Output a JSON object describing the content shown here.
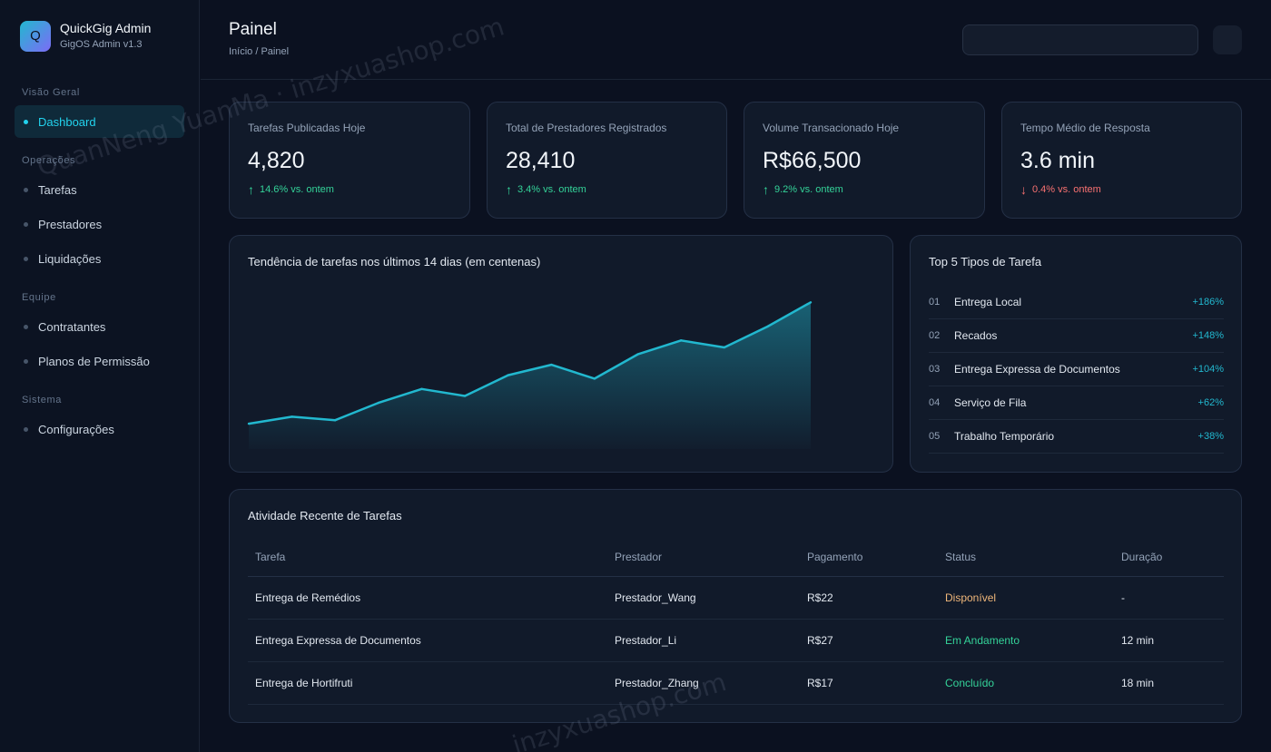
{
  "brand": {
    "logo_letter": "Q",
    "name": "QuickGig Admin",
    "version": "GigOS Admin v1.3"
  },
  "sidebar": {
    "sections": [
      "Visão Geral",
      "Operações",
      "Equipe",
      "Sistema"
    ],
    "items": [
      {
        "label": "Dashboard",
        "active": true
      },
      {
        "label": "Tarefas"
      },
      {
        "label": "Prestadores"
      },
      {
        "label": "Liquidações"
      },
      {
        "label": "Contratantes"
      },
      {
        "label": "Planos de Permissão"
      },
      {
        "label": "Configurações"
      }
    ]
  },
  "header": {
    "title": "Painel",
    "breadcrumb": "Início / Painel",
    "search_value": ""
  },
  "kpis": [
    {
      "label": "Tarefas Publicadas Hoje",
      "value": "4,820",
      "arrow": "↑",
      "change": "14.6% vs. ontem",
      "direction": "up"
    },
    {
      "label": "Total de Prestadores Registrados",
      "value": "28,410",
      "arrow": "↑",
      "change": "3.4% vs. ontem",
      "direction": "up"
    },
    {
      "label": "Volume Transacionado Hoje",
      "value": "R$66,500",
      "arrow": "↑",
      "change": "9.2% vs. ontem",
      "direction": "up"
    },
    {
      "label": "Tempo Médio de Resposta",
      "value": "3.6 min",
      "arrow": "↓",
      "change": "0.4% vs. ontem",
      "direction": "down"
    }
  ],
  "chart_data": {
    "type": "area",
    "title": "Tendência de tarefas nos últimos 14 dias (em centenas)",
    "x": [
      1,
      2,
      3,
      4,
      5,
      6,
      7,
      8,
      9,
      10,
      11,
      12,
      13,
      14
    ],
    "values": [
      12,
      16,
      14,
      24,
      32,
      28,
      40,
      46,
      38,
      52,
      60,
      56,
      68,
      82
    ],
    "ylim": [
      0,
      90
    ],
    "color": "#22b8cf",
    "grid": false,
    "axes_visible": false
  },
  "top_types": {
    "title": "Top 5 Tipos de Tarefa",
    "items": [
      {
        "rank": "01",
        "name": "Entrega Local",
        "pct": "+186%"
      },
      {
        "rank": "02",
        "name": "Recados",
        "pct": "+148%"
      },
      {
        "rank": "03",
        "name": "Entrega Expressa de Documentos",
        "pct": "+104%"
      },
      {
        "rank": "04",
        "name": "Serviço de Fila",
        "pct": "+62%"
      },
      {
        "rank": "05",
        "name": "Trabalho Temporário",
        "pct": "+38%"
      }
    ]
  },
  "activity": {
    "title": "Atividade Recente de Tarefas",
    "columns": [
      "Tarefa",
      "Prestador",
      "Pagamento",
      "Status",
      "Duração"
    ],
    "rows": [
      {
        "task": "Entrega de Remédios",
        "provider": "Prestador_Wang",
        "payment": "R$22",
        "status": "Disponível",
        "duration": "-"
      },
      {
        "task": "Entrega Expressa de Documentos",
        "provider": "Prestador_Li",
        "payment": "R$27",
        "status": "Em Andamento",
        "duration": "12 min"
      },
      {
        "task": "Entrega de Hortifruti",
        "provider": "Prestador_Zhang",
        "payment": "R$17",
        "status": "Concluído",
        "duration": "18 min"
      }
    ]
  },
  "watermarks": [
    "QuanNeng YuanMa · inzyxuashop.com",
    "inzyxuashop.com"
  ],
  "colors": {
    "accent": "#22b8cf",
    "up": "#34d399",
    "down": "#f87171",
    "available": "#f0b77a"
  }
}
